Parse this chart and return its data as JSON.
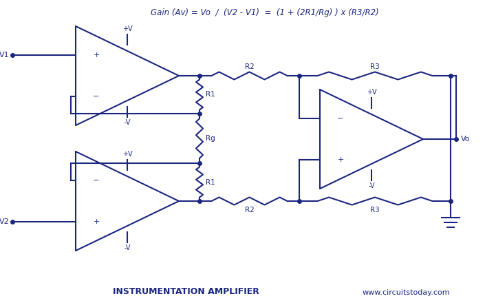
{
  "title": "Gain (Av) = Vo  /  (V2 - V1)  =  (1 + (2R1/Rg) ) x (R3/R2)",
  "footer_left": "INSTRUMENTATION AMPLIFIER",
  "footer_right": "www.circuitstoday.com",
  "color": "#1a2580",
  "bg_color": "#ffffff",
  "figsize": [
    7.05,
    4.4
  ],
  "dpi": 100,
  "xlim": [
    0,
    7.05
  ],
  "ylim": [
    0,
    4.4
  ]
}
